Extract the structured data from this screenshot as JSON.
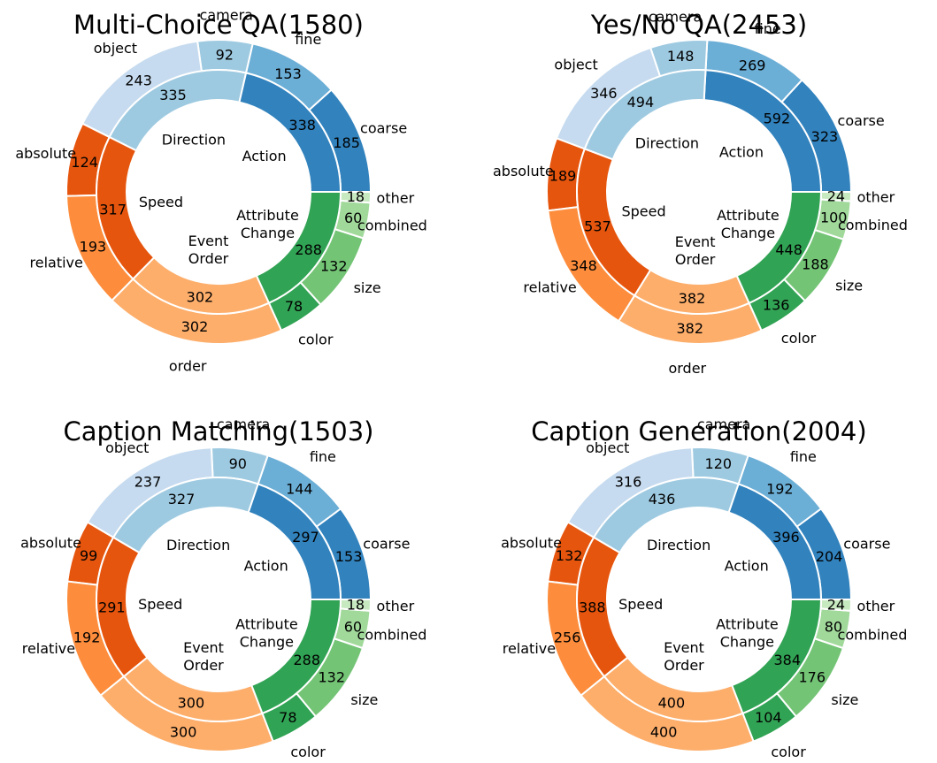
{
  "chart_data": [
    {
      "type": "pie",
      "subtype": "nested-donut",
      "title": "Multi-Choice QA(1580)",
      "inner": [
        {
          "label": "Action",
          "value": 338,
          "color": "#3182bd"
        },
        {
          "label": "Direction",
          "value": 335,
          "color": "#9ecae1"
        },
        {
          "label": "Speed",
          "value": 317,
          "color": "#e6550d"
        },
        {
          "label": "Event\nOrder",
          "value": 302,
          "color": "#fdae6b"
        },
        {
          "label": "Attribute\nChange",
          "value": 288,
          "color": "#31a354"
        }
      ],
      "outer": [
        {
          "label": "coarse",
          "value": 185,
          "color": "#3182bd"
        },
        {
          "label": "fine",
          "value": 153,
          "color": "#6baed6"
        },
        {
          "label": "camera",
          "value": 92,
          "color": "#9ecae1"
        },
        {
          "label": "object",
          "value": 243,
          "color": "#c6dbef"
        },
        {
          "label": "absolute",
          "value": 124,
          "color": "#e6550d"
        },
        {
          "label": "relative",
          "value": 193,
          "color": "#fd8d3c"
        },
        {
          "label": "order",
          "value": 302,
          "color": "#fdae6b"
        },
        {
          "label": "color",
          "value": 78,
          "color": "#31a354"
        },
        {
          "label": "size",
          "value": 132,
          "color": "#74c476"
        },
        {
          "label": "combined",
          "value": 60,
          "color": "#a1d99b"
        },
        {
          "label": "other",
          "value": 18,
          "color": "#c7e9c0"
        }
      ]
    },
    {
      "type": "pie",
      "subtype": "nested-donut",
      "title": "Yes/No QA(2453)",
      "inner": [
        {
          "label": "Action",
          "value": 592,
          "color": "#3182bd"
        },
        {
          "label": "Direction",
          "value": 494,
          "color": "#9ecae1"
        },
        {
          "label": "Speed",
          "value": 537,
          "color": "#e6550d"
        },
        {
          "label": "Event\nOrder",
          "value": 382,
          "color": "#fdae6b"
        },
        {
          "label": "Attribute\nChange",
          "value": 448,
          "color": "#31a354"
        }
      ],
      "outer": [
        {
          "label": "coarse",
          "value": 323,
          "color": "#3182bd"
        },
        {
          "label": "fine",
          "value": 269,
          "color": "#6baed6"
        },
        {
          "label": "camera",
          "value": 148,
          "color": "#9ecae1"
        },
        {
          "label": "object",
          "value": 346,
          "color": "#c6dbef"
        },
        {
          "label": "absolute",
          "value": 189,
          "color": "#e6550d"
        },
        {
          "label": "relative",
          "value": 348,
          "color": "#fd8d3c"
        },
        {
          "label": "order",
          "value": 382,
          "color": "#fdae6b"
        },
        {
          "label": "color",
          "value": 136,
          "color": "#31a354"
        },
        {
          "label": "size",
          "value": 188,
          "color": "#74c476"
        },
        {
          "label": "combined",
          "value": 100,
          "color": "#a1d99b"
        },
        {
          "label": "other",
          "value": 24,
          "color": "#c7e9c0"
        }
      ]
    },
    {
      "type": "pie",
      "subtype": "nested-donut",
      "title": "Caption Matching(1503)",
      "inner": [
        {
          "label": "Action",
          "value": 297,
          "color": "#3182bd"
        },
        {
          "label": "Direction",
          "value": 327,
          "color": "#9ecae1"
        },
        {
          "label": "Speed",
          "value": 291,
          "color": "#e6550d"
        },
        {
          "label": "Event\nOrder",
          "value": 300,
          "color": "#fdae6b"
        },
        {
          "label": "Attribute\nChange",
          "value": 288,
          "color": "#31a354"
        }
      ],
      "outer": [
        {
          "label": "coarse",
          "value": 153,
          "color": "#3182bd"
        },
        {
          "label": "fine",
          "value": 144,
          "color": "#6baed6"
        },
        {
          "label": "camera",
          "value": 90,
          "color": "#9ecae1"
        },
        {
          "label": "object",
          "value": 237,
          "color": "#c6dbef"
        },
        {
          "label": "absolute",
          "value": 99,
          "color": "#e6550d"
        },
        {
          "label": "relative",
          "value": 192,
          "color": "#fd8d3c"
        },
        {
          "label": "order",
          "value": 300,
          "color": "#fdae6b"
        },
        {
          "label": "color",
          "value": 78,
          "color": "#31a354"
        },
        {
          "label": "size",
          "value": 132,
          "color": "#74c476"
        },
        {
          "label": "combined",
          "value": 60,
          "color": "#a1d99b"
        },
        {
          "label": "other",
          "value": 18,
          "color": "#c7e9c0"
        }
      ]
    },
    {
      "type": "pie",
      "subtype": "nested-donut",
      "title": "Caption Generation(2004)",
      "inner": [
        {
          "label": "Action",
          "value": 396,
          "color": "#3182bd"
        },
        {
          "label": "Direction",
          "value": 436,
          "color": "#9ecae1"
        },
        {
          "label": "Speed",
          "value": 388,
          "color": "#e6550d"
        },
        {
          "label": "Event\nOrder",
          "value": 400,
          "color": "#fdae6b"
        },
        {
          "label": "Attribute\nChange",
          "value": 384,
          "color": "#31a354"
        }
      ],
      "outer": [
        {
          "label": "coarse",
          "value": 204,
          "color": "#3182bd"
        },
        {
          "label": "fine",
          "value": 192,
          "color": "#6baed6"
        },
        {
          "label": "camera",
          "value": 120,
          "color": "#9ecae1"
        },
        {
          "label": "object",
          "value": 316,
          "color": "#c6dbef"
        },
        {
          "label": "absolute",
          "value": 132,
          "color": "#e6550d"
        },
        {
          "label": "relative",
          "value": 256,
          "color": "#fd8d3c"
        },
        {
          "label": "order",
          "value": 400,
          "color": "#fdae6b"
        },
        {
          "label": "color",
          "value": 104,
          "color": "#31a354"
        },
        {
          "label": "size",
          "value": 176,
          "color": "#74c476"
        },
        {
          "label": "combined",
          "value": 80,
          "color": "#a1d99b"
        },
        {
          "label": "other",
          "value": 24,
          "color": "#c7e9c0"
        }
      ]
    }
  ]
}
